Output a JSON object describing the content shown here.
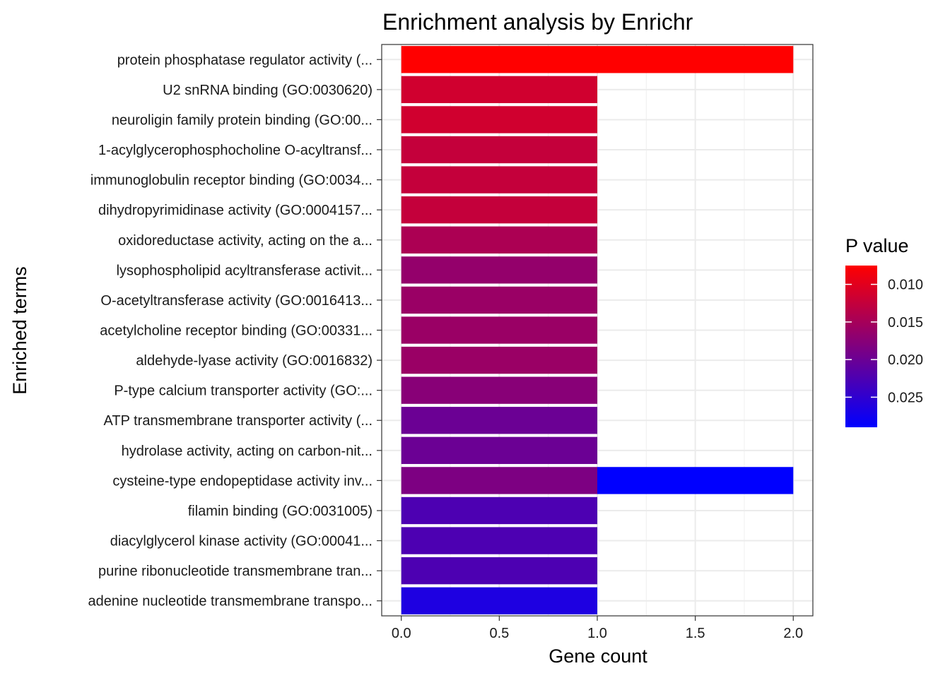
{
  "chart_data": {
    "type": "bar",
    "orientation": "horizontal",
    "stacked": true,
    "title": "Enrichment analysis by Enrichr",
    "xlabel": "Gene count",
    "ylabel": "Enriched terms",
    "xlim": [
      -0.1,
      2.1
    ],
    "x_ticks": [
      "0.0",
      "0.5",
      "1.0",
      "1.5",
      "2.0"
    ],
    "grid": true,
    "legend": {
      "title": "P value",
      "position": "right",
      "colors": [
        "#ff0000",
        "#0000ff"
      ],
      "range": [
        0.0075,
        0.029
      ],
      "ticks": [
        "0.010",
        "0.015",
        "0.020",
        "0.025"
      ]
    },
    "categories": [
      "protein phosphatase regulator activity (...",
      "U2 snRNA binding (GO:0030620)",
      "neuroligin family protein binding (GO:00...",
      "1-acylglycerophosphocholine O-acyltransf...",
      "immunoglobulin receptor binding (GO:0034...",
      "dihydropyrimidinase activity (GO:0004157...",
      "oxidoreductase activity, acting on the a...",
      "lysophospholipid acyltransferase activit...",
      "O-acetyltransferase activity (GO:0016413...",
      "acetylcholine receptor binding (GO:00331...",
      "aldehyde-lyase activity (GO:0016832)",
      "P-type calcium transporter activity (GO:...",
      "ATP transmembrane transporter activity (...",
      "hydrolase activity, acting on carbon-nit...",
      "cysteine-type endopeptidase activity inv...",
      "filamin binding (GO:0031005)",
      "diacylglycerol kinase activity (GO:00041...",
      "purine ribonucleotide transmembrane tran...",
      "adenine nucleotide transmembrane transpo..."
    ],
    "bars": [
      {
        "category": 0,
        "segments": [
          {
            "value": 2,
            "p": 0.0075
          }
        ]
      },
      {
        "category": 1,
        "segments": [
          {
            "value": 1,
            "p": 0.0115
          }
        ]
      },
      {
        "category": 2,
        "segments": [
          {
            "value": 1,
            "p": 0.0115
          }
        ]
      },
      {
        "category": 3,
        "segments": [
          {
            "value": 1,
            "p": 0.0125
          }
        ]
      },
      {
        "category": 4,
        "segments": [
          {
            "value": 1,
            "p": 0.0125
          }
        ]
      },
      {
        "category": 5,
        "segments": [
          {
            "value": 1,
            "p": 0.0125
          }
        ]
      },
      {
        "category": 6,
        "segments": [
          {
            "value": 1,
            "p": 0.0145
          }
        ]
      },
      {
        "category": 7,
        "segments": [
          {
            "value": 1,
            "p": 0.0165
          }
        ]
      },
      {
        "category": 8,
        "segments": [
          {
            "value": 1,
            "p": 0.016
          }
        ]
      },
      {
        "category": 9,
        "segments": [
          {
            "value": 1,
            "p": 0.016
          }
        ]
      },
      {
        "category": 10,
        "segments": [
          {
            "value": 1,
            "p": 0.016
          }
        ]
      },
      {
        "category": 11,
        "segments": [
          {
            "value": 1,
            "p": 0.0175
          }
        ]
      },
      {
        "category": 12,
        "segments": [
          {
            "value": 1,
            "p": 0.02
          }
        ]
      },
      {
        "category": 13,
        "segments": [
          {
            "value": 1,
            "p": 0.02
          }
        ]
      },
      {
        "category": 14,
        "segments": [
          {
            "value": 1,
            "p": 0.0185
          },
          {
            "value": 1,
            "p": 0.029
          }
        ]
      },
      {
        "category": 15,
        "segments": [
          {
            "value": 1,
            "p": 0.0225
          }
        ]
      },
      {
        "category": 16,
        "segments": [
          {
            "value": 1,
            "p": 0.0225
          }
        ]
      },
      {
        "category": 17,
        "segments": [
          {
            "value": 1,
            "p": 0.0225
          }
        ]
      },
      {
        "category": 18,
        "segments": [
          {
            "value": 1,
            "p": 0.0265
          }
        ]
      }
    ]
  }
}
